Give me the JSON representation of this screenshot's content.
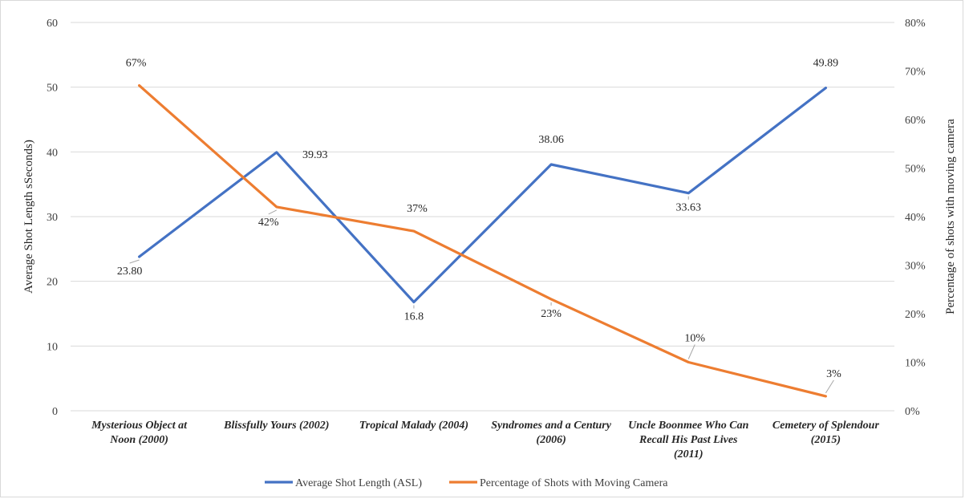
{
  "chart_data": {
    "type": "line",
    "categories": [
      [
        "Mysterious Object at",
        "Noon (2000)"
      ],
      [
        "Blissfully Yours (2002)"
      ],
      [
        "Tropical Malady (2004)"
      ],
      [
        "Syndromes and a Century",
        "(2006)"
      ],
      [
        "Uncle Boonmee Who Can",
        "Recall His Past Lives",
        "(2011)"
      ],
      [
        "Cemetery of Splendour",
        "(2015)"
      ]
    ],
    "ylabel": "Average Shot Length sSeconds)",
    "y2label": "Percentage of shots with moving camera",
    "ylim": [
      0,
      60
    ],
    "y2lim": [
      0,
      80
    ],
    "yticks": [
      "0",
      "10",
      "20",
      "30",
      "40",
      "50",
      "60"
    ],
    "y2ticks": [
      "0%",
      "10%",
      "20%",
      "30%",
      "40%",
      "50%",
      "60%",
      "70%",
      "80%"
    ],
    "grid": true,
    "legend_position": "bottom",
    "series": [
      {
        "name": "Average Shot Length (ASL)",
        "axis": "left",
        "color": "#4472c4",
        "values": [
          23.8,
          39.93,
          16.8,
          38.06,
          33.63,
          49.89
        ],
        "labels": [
          "23.80",
          "39.93",
          "16.8",
          "38.06",
          "33.63",
          "49.89"
        ]
      },
      {
        "name": "Percentage of Shots with Moving Camera",
        "axis": "right",
        "color": "#ed7d31",
        "values": [
          67,
          42,
          37,
          23,
          10,
          3
        ],
        "labels": [
          "67%",
          "42%",
          "37%",
          "23%",
          "10%",
          "3%"
        ]
      }
    ]
  }
}
